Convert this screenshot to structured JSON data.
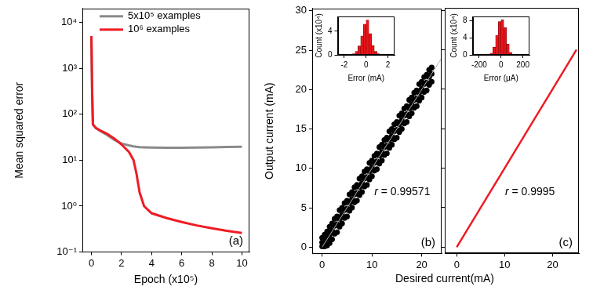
{
  "chart_data": [
    {
      "type": "line",
      "panel_label": "(a)",
      "x_label": "Epoch (x10⁵)",
      "y_label": "Mean squared error",
      "log": "y",
      "legend": "upper left",
      "grid": false,
      "x": [
        0,
        0.05,
        0.1,
        0.3,
        0.6,
        1,
        1.5,
        2,
        2.5,
        2.8,
        3,
        3.2,
        3.5,
        4,
        5,
        6,
        7,
        8,
        9,
        10
      ],
      "series": [
        {
          "name": "5x10⁵ examples",
          "color": "#8a8a8a",
          "values": [
            5000,
            300,
            60,
            50,
            43,
            36,
            28,
            23,
            21,
            20,
            19.5,
            19.2,
            19,
            18.8,
            18.6,
            18.6,
            18.8,
            19,
            19.3,
            19.6
          ]
        },
        {
          "name": "10⁶ examples",
          "color": "#ee1c25",
          "values": [
            5000,
            300,
            60,
            50,
            44,
            38,
            30,
            22,
            15,
            10,
            5,
            2,
            1,
            0.7,
            0.55,
            0.45,
            0.38,
            0.33,
            0.29,
            0.26
          ]
        }
      ],
      "xlim": [
        -0.6,
        10.5
      ],
      "xticks": [
        0,
        2,
        4,
        6,
        8,
        10
      ],
      "ylim": [
        0.1,
        20000
      ],
      "yticks": [
        {
          "value": 0.1,
          "label": "10⁻¹"
        },
        {
          "value": 1,
          "label": "10⁰"
        },
        {
          "value": 10,
          "label": "10¹"
        },
        {
          "value": 100,
          "label": "10²"
        },
        {
          "value": 1000,
          "label": "10³"
        },
        {
          "value": 10000,
          "label": "10⁴"
        }
      ]
    },
    {
      "type": "scatter",
      "panel_label": "(b)",
      "x_label": "Desired current(mA)",
      "y_label": "Output current (mA)",
      "annotation": "r = 0.99571",
      "grid": false,
      "series": [
        {
          "color": "#000000",
          "marker": "circle",
          "values": [
            [
              0,
              0.1
            ],
            [
              0,
              0.6
            ],
            [
              0,
              1.2
            ],
            [
              0.5,
              0.1
            ],
            [
              0.5,
              0.7
            ],
            [
              0.5,
              1.6
            ],
            [
              1,
              0.2
            ],
            [
              1,
              1.1
            ],
            [
              1,
              2.0
            ],
            [
              1.5,
              0.5
            ],
            [
              1.5,
              1.6
            ],
            [
              1.5,
              2.6
            ],
            [
              2,
              1.0
            ],
            [
              2,
              2.1
            ],
            [
              2,
              3.0
            ],
            [
              2.5,
              1.7
            ],
            [
              2.5,
              2.7
            ],
            [
              2.5,
              3.6
            ],
            [
              3,
              1.9
            ],
            [
              3,
              2.9
            ],
            [
              3,
              3.9
            ],
            [
              3.5,
              2.6
            ],
            [
              3.5,
              3.6
            ],
            [
              3.5,
              4.7
            ],
            [
              4,
              3.0
            ],
            [
              4,
              4.1
            ],
            [
              4,
              5.0
            ],
            [
              4.5,
              3.7
            ],
            [
              4.5,
              4.7
            ],
            [
              4.5,
              5.6
            ],
            [
              5,
              3.9
            ],
            [
              5,
              4.9
            ],
            [
              5,
              5.9
            ],
            [
              5.5,
              4.6
            ],
            [
              5.5,
              5.6
            ],
            [
              5.5,
              6.7
            ],
            [
              6,
              5.0
            ],
            [
              6,
              6.1
            ],
            [
              6,
              7.0
            ],
            [
              6.5,
              5.7
            ],
            [
              6.5,
              6.7
            ],
            [
              6.5,
              7.6
            ],
            [
              7,
              5.9
            ],
            [
              7,
              6.9
            ],
            [
              7,
              7.9
            ],
            [
              7.5,
              6.6
            ],
            [
              7.5,
              7.6
            ],
            [
              7.5,
              8.7
            ],
            [
              8,
              7.0
            ],
            [
              8,
              8.1
            ],
            [
              8,
              9.0
            ],
            [
              8.5,
              7.7
            ],
            [
              8.5,
              8.7
            ],
            [
              8.5,
              9.6
            ],
            [
              9,
              7.9
            ],
            [
              9,
              8.9
            ],
            [
              9,
              9.9
            ],
            [
              9.5,
              8.6
            ],
            [
              9.5,
              9.6
            ],
            [
              9.5,
              10.7
            ],
            [
              10,
              9.0
            ],
            [
              10,
              10.1
            ],
            [
              10,
              11.0
            ],
            [
              10.5,
              9.7
            ],
            [
              10.5,
              10.7
            ],
            [
              10.5,
              11.6
            ],
            [
              11,
              9.9
            ],
            [
              11,
              10.9
            ],
            [
              11,
              11.9
            ],
            [
              11.5,
              10.6
            ],
            [
              11.5,
              11.6
            ],
            [
              11.5,
              12.7
            ],
            [
              12,
              11.0
            ],
            [
              12,
              12.1
            ],
            [
              12,
              13.0
            ],
            [
              12.5,
              11.7
            ],
            [
              12.5,
              12.7
            ],
            [
              12.5,
              13.6
            ],
            [
              13,
              11.9
            ],
            [
              13,
              12.9
            ],
            [
              13,
              13.9
            ],
            [
              13.5,
              12.6
            ],
            [
              13.5,
              13.6
            ],
            [
              13.5,
              14.7
            ],
            [
              14,
              13.0
            ],
            [
              14,
              14.1
            ],
            [
              14,
              15.0
            ],
            [
              14.5,
              13.7
            ],
            [
              14.5,
              14.7
            ],
            [
              14.5,
              15.6
            ],
            [
              15,
              13.9
            ],
            [
              15,
              14.9
            ],
            [
              15,
              15.9
            ],
            [
              15.5,
              14.6
            ],
            [
              15.5,
              15.6
            ],
            [
              15.5,
              16.7
            ],
            [
              16,
              15.0
            ],
            [
              16,
              16.1
            ],
            [
              16,
              17.0
            ],
            [
              16.5,
              15.7
            ],
            [
              16.5,
              16.7
            ],
            [
              16.5,
              17.6
            ],
            [
              17,
              15.9
            ],
            [
              17,
              16.9
            ],
            [
              17,
              17.9
            ],
            [
              17.5,
              16.6
            ],
            [
              17.5,
              17.6
            ],
            [
              17.5,
              18.7
            ],
            [
              18,
              17.0
            ],
            [
              18,
              18.1
            ],
            [
              18,
              19.0
            ],
            [
              18.5,
              17.7
            ],
            [
              18.5,
              18.7
            ],
            [
              18.5,
              19.6
            ],
            [
              19,
              17.9
            ],
            [
              19,
              18.9
            ],
            [
              19,
              19.9
            ],
            [
              19.5,
              18.6
            ],
            [
              19.5,
              19.6
            ],
            [
              19.5,
              20.7
            ],
            [
              20,
              19.0
            ],
            [
              20,
              20.1
            ],
            [
              20,
              21.0
            ],
            [
              20.5,
              19.7
            ],
            [
              20.5,
              20.7
            ],
            [
              20.5,
              21.6
            ],
            [
              21,
              19.9
            ],
            [
              21,
              20.9
            ],
            [
              21,
              21.9
            ],
            [
              21.5,
              20.6
            ],
            [
              21.5,
              21.6
            ],
            [
              21.5,
              22.5
            ],
            [
              22,
              21.0
            ],
            [
              22,
              22.0
            ],
            [
              22,
              22.8
            ]
          ]
        },
        {
          "type": "line",
          "color": "#b0b0b0",
          "values": [
            [
              0,
              0
            ],
            [
              24,
              24
            ]
          ]
        }
      ],
      "xlim": [
        -2,
        24
      ],
      "xticks": [
        0,
        10,
        20
      ],
      "ylim": [
        -0.8,
        30.3
      ],
      "yticks": [
        0,
        5,
        10,
        15,
        20,
        25,
        30
      ]
    },
    {
      "type": "histogram",
      "x_label": "Error (mA)",
      "y_label": "Count (x10⁴)",
      "color": "#e8141b",
      "grid": false,
      "bins": [
        -2,
        -1.75,
        -1.5,
        -1.25,
        -1,
        -0.75,
        -0.5,
        -0.25,
        0,
        0.25,
        0.5,
        0.75,
        1,
        1.25,
        1.5,
        1.75,
        2
      ],
      "counts": [
        0,
        0.01,
        0.05,
        0.2,
        0.6,
        1.5,
        3.2,
        5.2,
        5.9,
        3.6,
        1.6,
        0.6,
        0.2,
        0.05,
        0.01,
        0
      ],
      "xlim": [
        -2.6,
        2.6
      ],
      "xticks": [
        -2,
        0,
        2
      ],
      "ylim": [
        0,
        6.5
      ],
      "yticks": [
        0,
        4
      ]
    },
    {
      "type": "line",
      "panel_label": "(c)",
      "annotation": "r = 0.9995",
      "grid": false,
      "tick_labels": "x",
      "series": [
        {
          "color": "#ee1c25",
          "values": [
            [
              0,
              0
            ],
            [
              5,
              5
            ],
            [
              10,
              10
            ],
            [
              15,
              15
            ],
            [
              20,
              20
            ],
            [
              25,
              25
            ]
          ]
        }
      ],
      "xlim": [
        -2.5,
        25.5
      ],
      "xticks": [
        0,
        10,
        20
      ],
      "ylim": [
        -0.8,
        30.3
      ],
      "yticks": [
        0,
        5,
        10,
        15,
        20,
        25,
        30
      ]
    },
    {
      "type": "histogram",
      "x_label": "Error (μA)",
      "y_label": "Count (x10⁴)",
      "color": "#e8141b",
      "grid": false,
      "bins": [
        -200,
        -175,
        -150,
        -125,
        -100,
        -75,
        -50,
        -25,
        0,
        25,
        50,
        75,
        100,
        125,
        150,
        175,
        200
      ],
      "counts": [
        0,
        0,
        0,
        0.05,
        0.4,
        1.8,
        4.6,
        7.8,
        8.2,
        6.4,
        2.5,
        0.6,
        0.1,
        0,
        0,
        0
      ],
      "xlim": [
        -260,
        260
      ],
      "xticks": [
        -200,
        0,
        200
      ],
      "ylim": [
        0,
        9
      ],
      "yticks": [
        0,
        4,
        8
      ]
    }
  ]
}
